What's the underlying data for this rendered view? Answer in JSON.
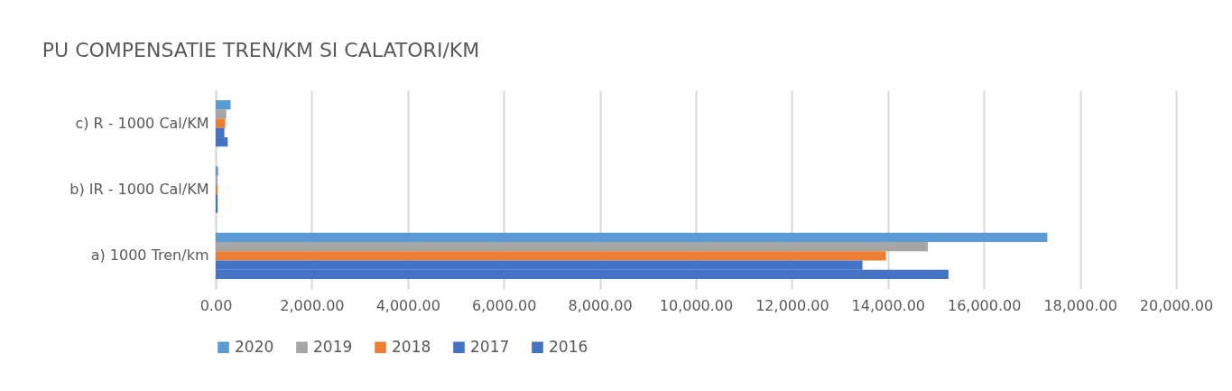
{
  "chart_data": {
    "type": "bar",
    "orientation": "horizontal",
    "title": "PU COMPENSATIE TREN/KM SI CALATORI/KM",
    "categories": [
      "c) R - 1000 Cal/KM",
      "b) IR - 1000 Cal/KM",
      "a) 1000 Tren/km"
    ],
    "series": [
      {
        "name": "2020",
        "color": "#5b9bd5",
        "values": [
          310,
          50,
          17320
        ]
      },
      {
        "name": "2019",
        "color": "#a5a5a5",
        "values": [
          220,
          40,
          14830
        ]
      },
      {
        "name": "2018",
        "color": "#ed7d31",
        "values": [
          200,
          40,
          13960
        ]
      },
      {
        "name": "2017",
        "color": "#4472c4",
        "values": [
          180,
          40,
          13470
        ]
      },
      {
        "name": "2016",
        "color": "#4472c4",
        "values": [
          250,
          40,
          15260
        ]
      }
    ],
    "xlim": [
      0,
      20000
    ],
    "xticks": [
      {
        "value": 0,
        "label": "0.00"
      },
      {
        "value": 2000,
        "label": "2,000.00"
      },
      {
        "value": 4000,
        "label": "4,000.00"
      },
      {
        "value": 6000,
        "label": "6,000.00"
      },
      {
        "value": 8000,
        "label": "8,000.00"
      },
      {
        "value": 10000,
        "label": "10,000.00"
      },
      {
        "value": 12000,
        "label": "12,000.00"
      },
      {
        "value": 14000,
        "label": "14,000.00"
      },
      {
        "value": 16000,
        "label": "16,000.00"
      },
      {
        "value": 18000,
        "label": "18,000.00"
      },
      {
        "value": 20000,
        "label": "20,000.00"
      }
    ],
    "grid": "x",
    "legend": "bottom"
  }
}
